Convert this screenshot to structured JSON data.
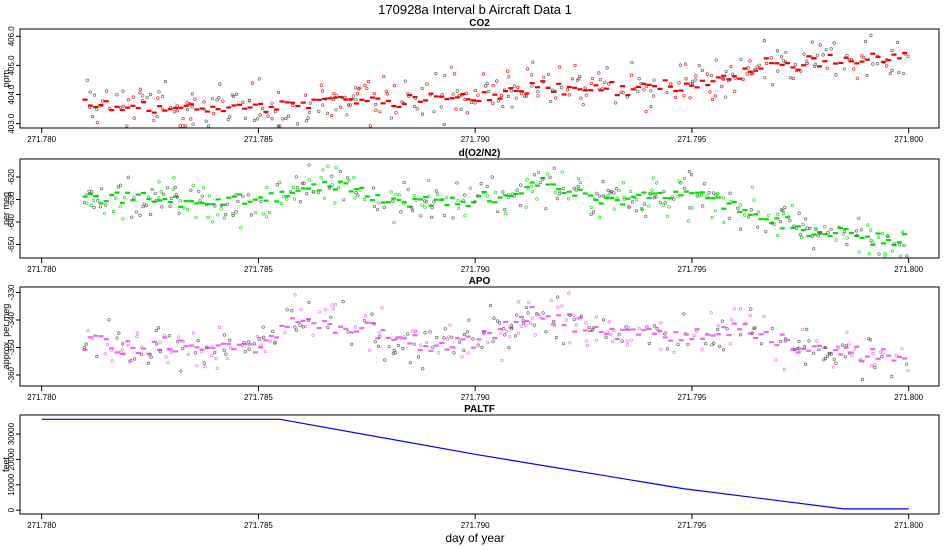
{
  "figure": {
    "title": "170928a   Interval b Aircraft Data 1",
    "xlabel": "day of year"
  },
  "chart_data": [
    {
      "type": "scatter",
      "title": "CO2",
      "ylabel": "ppm",
      "color": "#ee0000",
      "xlim": [
        271.7795,
        271.8007
      ],
      "ylim": [
        402.85,
        406.25
      ],
      "xticks": [
        "271.780",
        "271.785",
        "271.790",
        "271.795",
        "271.800"
      ],
      "xtick_values": [
        271.78,
        271.785,
        271.79,
        271.795,
        271.8
      ],
      "yticks": [
        "403.0",
        "404.0",
        "405.0",
        "406.0"
      ],
      "ytick_values": [
        403.0,
        404.0,
        405.0,
        406.0
      ],
      "x_start": 271.781,
      "x_end": 271.8,
      "trend_x": [
        271.781,
        271.783,
        271.785,
        271.787,
        271.79,
        271.7915,
        271.793,
        271.795,
        271.796,
        271.7965,
        271.798,
        271.8
      ],
      "trend_y": [
        403.7,
        403.5,
        403.6,
        403.8,
        403.9,
        404.3,
        404.2,
        404.3,
        404.5,
        404.9,
        405.2,
        405.3
      ],
      "noise": 0.28,
      "spread": 0.55
    },
    {
      "type": "scatter",
      "title": "d(O2/N2)",
      "ylabel": "per meg",
      "color": "#00dd00",
      "xlim": [
        271.7795,
        271.8007
      ],
      "ylim": [
        -656,
        -612
      ],
      "xticks": [
        "271.780",
        "271.785",
        "271.790",
        "271.795",
        "271.800"
      ],
      "xtick_values": [
        271.78,
        271.785,
        271.79,
        271.795,
        271.8
      ],
      "yticks": [
        "-650",
        "-640",
        "-630",
        "-620"
      ],
      "ytick_values": [
        -650,
        -640,
        -630,
        -620
      ],
      "x_start": 271.781,
      "x_end": 271.8,
      "trend_x": [
        271.781,
        271.783,
        271.785,
        271.786,
        271.787,
        271.788,
        271.79,
        271.791,
        271.7915,
        271.793,
        271.795,
        271.796,
        271.797,
        271.798,
        271.8
      ],
      "trend_y": [
        -630,
        -630,
        -632,
        -625,
        -622,
        -632,
        -630,
        -628,
        -622,
        -630,
        -628,
        -632,
        -640,
        -645,
        -648
      ],
      "noise": 3.5,
      "spread": 6
    },
    {
      "type": "scatter",
      "title": "APO",
      "ylabel": "approx. per meg",
      "color": "#ee66ee",
      "xlim": [
        271.7795,
        271.8007
      ],
      "ylim": [
        -364,
        -328
      ],
      "xticks": [
        "271.780",
        "271.785",
        "271.790",
        "271.795",
        "271.800"
      ],
      "xtick_values": [
        271.78,
        271.785,
        271.79,
        271.795,
        271.8
      ],
      "yticks": [
        "-360",
        "-350",
        "-340",
        "-330"
      ],
      "ytick_values": [
        -360,
        -350,
        -340,
        -330
      ],
      "x_start": 271.781,
      "x_end": 271.8,
      "trend_x": [
        271.781,
        271.783,
        271.785,
        271.786,
        271.787,
        271.789,
        271.79,
        271.7915,
        271.793,
        271.795,
        271.796,
        271.797,
        271.798,
        271.8
      ],
      "trend_y": [
        -348,
        -350,
        -350,
        -340,
        -342,
        -350,
        -347,
        -337,
        -345,
        -345,
        -342,
        -348,
        -350,
        -355
      ],
      "noise": 4,
      "spread": 6
    },
    {
      "type": "line",
      "title": "PALTF",
      "ylabel": "feet",
      "color": "#0000ee",
      "xlim": [
        271.7795,
        271.8007
      ],
      "ylim": [
        -1500,
        37500
      ],
      "xticks": [
        "271.780",
        "271.785",
        "271.790",
        "271.795",
        "271.800"
      ],
      "xtick_values": [
        271.78,
        271.785,
        271.79,
        271.795,
        271.8
      ],
      "yticks": [
        "0",
        "10000",
        "20000",
        "30000"
      ],
      "ytick_values": [
        0,
        10000,
        20000,
        30000
      ],
      "x": [
        271.78,
        271.7855,
        271.79,
        271.7948,
        271.7985,
        271.8
      ],
      "y": [
        35800,
        35800,
        22000,
        8500,
        500,
        500
      ]
    }
  ]
}
